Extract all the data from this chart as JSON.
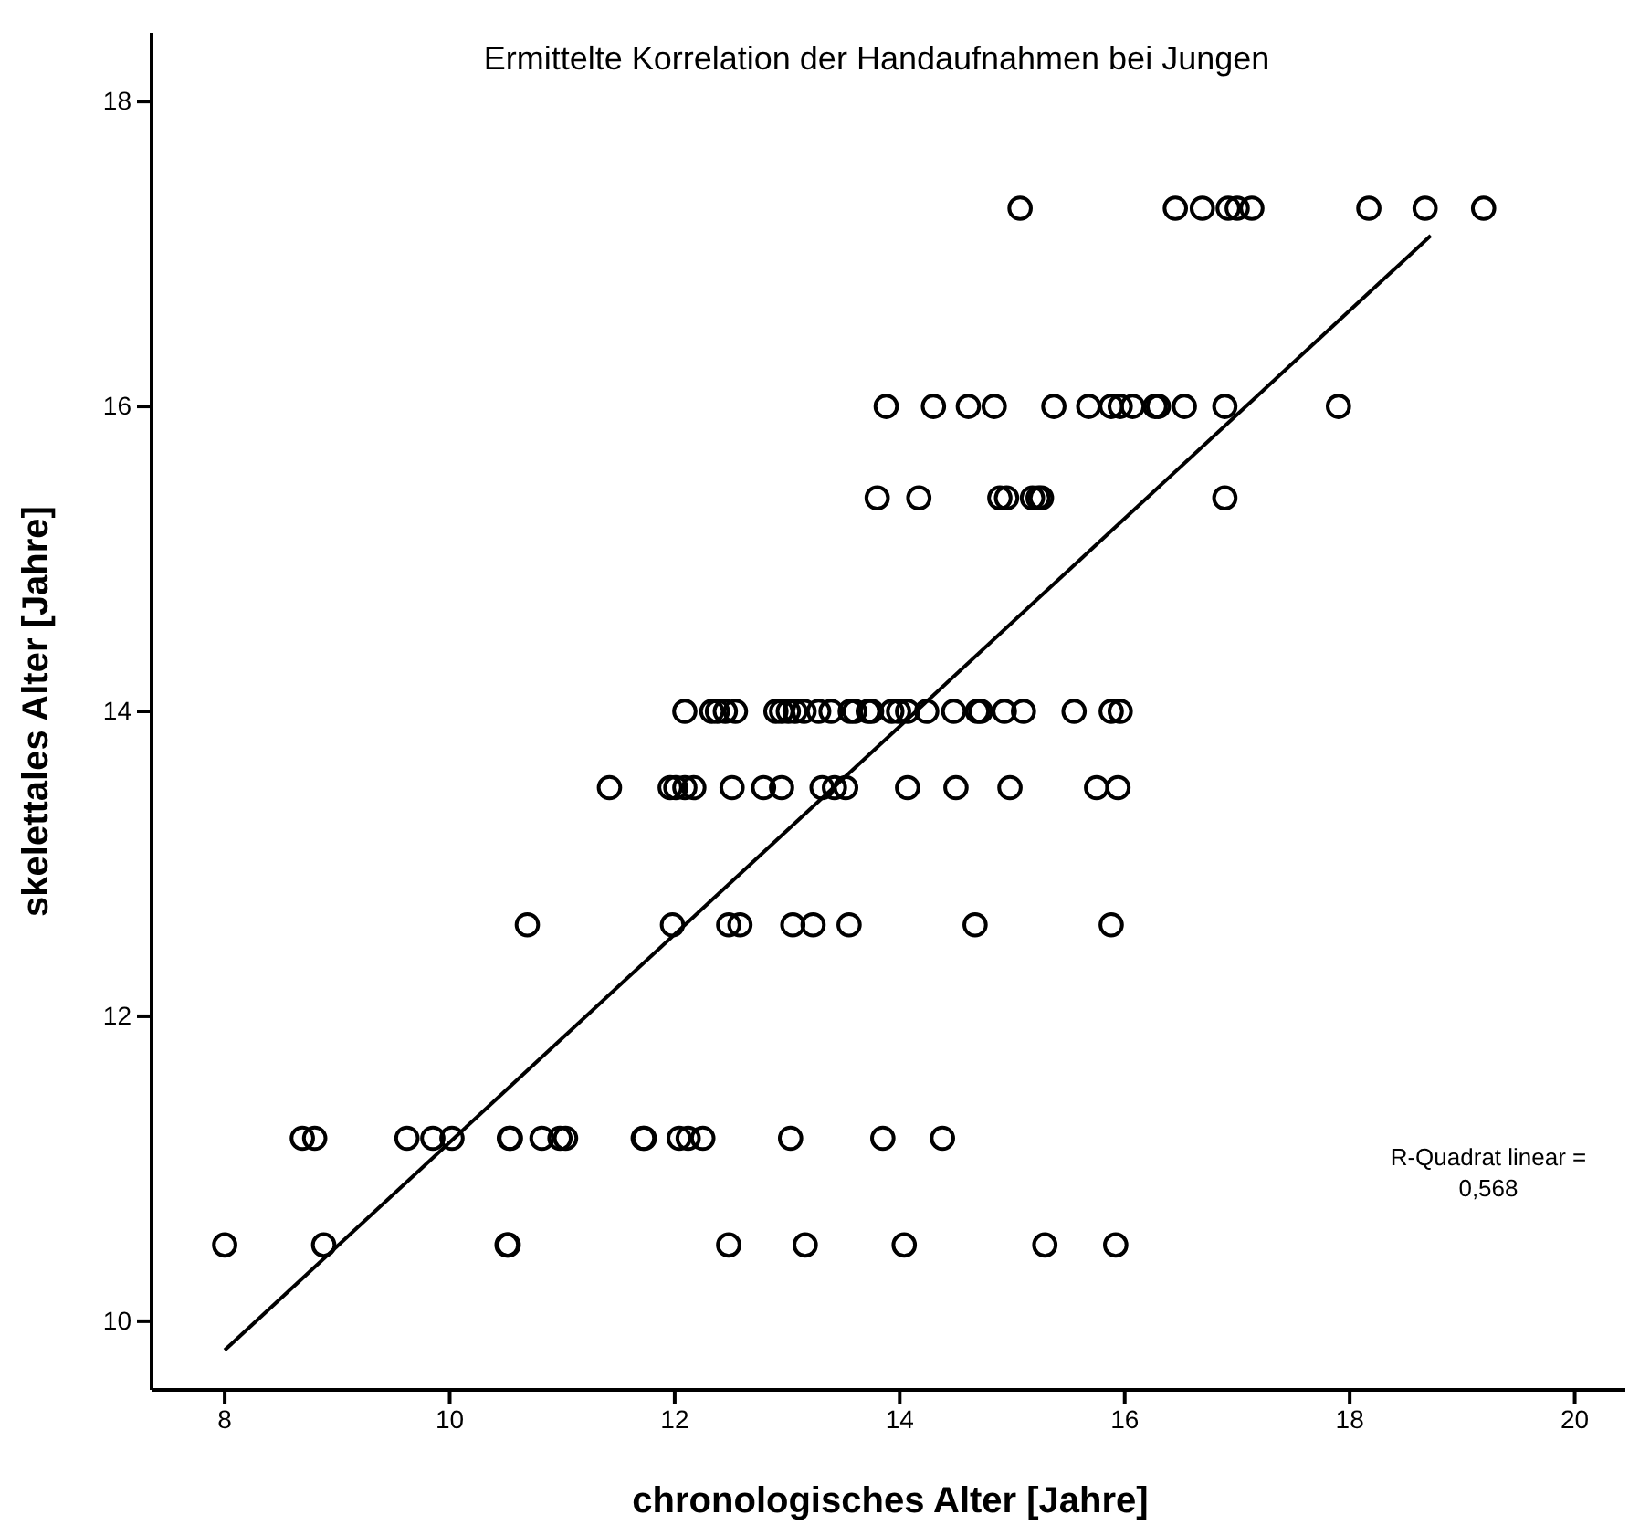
{
  "chart_data": {
    "type": "scatter",
    "title": "Ermittelte Korrelation der Handaufnahmen bei Jungen",
    "xlabel": "chronologisches Alter [Jahre]",
    "ylabel": "skelettales Alter [Jahre]",
    "xlim": [
      7.35,
      20.45
    ],
    "ylim": [
      9.55,
      18.45
    ],
    "xticks": [
      8,
      10,
      12,
      14,
      16,
      18,
      20
    ],
    "yticks": [
      10,
      12,
      14,
      16,
      18
    ],
    "grid": false,
    "annotations": [
      "R-Quadrat linear =\n0,568"
    ],
    "series": [
      {
        "marker": "circle",
        "color": "#000000",
        "x": [
          15.07,
          16.45,
          16.69,
          16.92,
          17.0,
          17.13,
          18.17,
          18.67,
          19.19,
          13.88,
          14.3,
          14.61,
          14.84,
          15.37,
          15.68,
          15.88,
          15.96,
          16.07,
          16.27,
          16.3,
          16.53,
          16.89,
          17.9,
          13.8,
          14.17,
          14.89,
          14.95,
          15.18,
          15.23,
          15.26,
          16.89,
          12.09,
          12.33,
          12.38,
          12.45,
          12.54,
          12.9,
          12.95,
          13.01,
          13.07,
          13.15,
          13.28,
          13.39,
          13.56,
          13.6,
          13.72,
          13.75,
          13.93,
          13.99,
          14.07,
          14.24,
          14.48,
          14.69,
          14.72,
          14.93,
          15.1,
          15.55,
          15.88,
          15.96,
          11.42,
          11.96,
          12.01,
          12.09,
          12.17,
          12.51,
          12.79,
          12.95,
          13.31,
          13.42,
          13.52,
          14.07,
          14.5,
          14.98,
          15.75,
          15.94,
          10.69,
          11.98,
          12.48,
          12.58,
          13.05,
          13.23,
          13.55,
          14.67,
          15.88,
          8.69,
          8.8,
          9.62,
          9.85,
          10.02,
          10.53,
          10.54,
          10.82,
          10.98,
          11.03,
          11.72,
          11.73,
          12.04,
          12.12,
          12.25,
          13.03,
          13.85,
          14.38,
          8.0,
          8.88,
          10.51,
          10.52,
          12.48,
          13.16,
          14.04,
          15.29,
          15.92
        ],
        "values": [
          17.3,
          17.3,
          17.3,
          17.3,
          17.3,
          17.3,
          17.3,
          17.3,
          17.3,
          16,
          16,
          16,
          16,
          16,
          16,
          16,
          16,
          16,
          16,
          16,
          16,
          16,
          16,
          15.4,
          15.4,
          15.4,
          15.4,
          15.4,
          15.4,
          15.4,
          15.4,
          14,
          14,
          14,
          14,
          14,
          14,
          14,
          14,
          14,
          14,
          14,
          14,
          14,
          14,
          14,
          14,
          14,
          14,
          14,
          14,
          14,
          14,
          14,
          14,
          14,
          14,
          14,
          14,
          13.5,
          13.5,
          13.5,
          13.5,
          13.5,
          13.5,
          13.5,
          13.5,
          13.5,
          13.5,
          13.5,
          13.5,
          13.5,
          13.5,
          13.5,
          13.5,
          12.6,
          12.6,
          12.6,
          12.6,
          12.6,
          12.6,
          12.6,
          12.6,
          12.6,
          11.2,
          11.2,
          11.2,
          11.2,
          11.2,
          11.2,
          11.2,
          11.2,
          11.2,
          11.2,
          11.2,
          11.2,
          11.2,
          11.2,
          11.2,
          11.2,
          11.2,
          11.2,
          10.5,
          10.5,
          10.5,
          10.5,
          10.5,
          10.5,
          10.5,
          10.5,
          10.5
        ]
      },
      {
        "type": "line",
        "color": "#000000",
        "x": [
          8.0,
          18.72
        ],
        "values": [
          9.81,
          17.12
        ]
      }
    ]
  }
}
